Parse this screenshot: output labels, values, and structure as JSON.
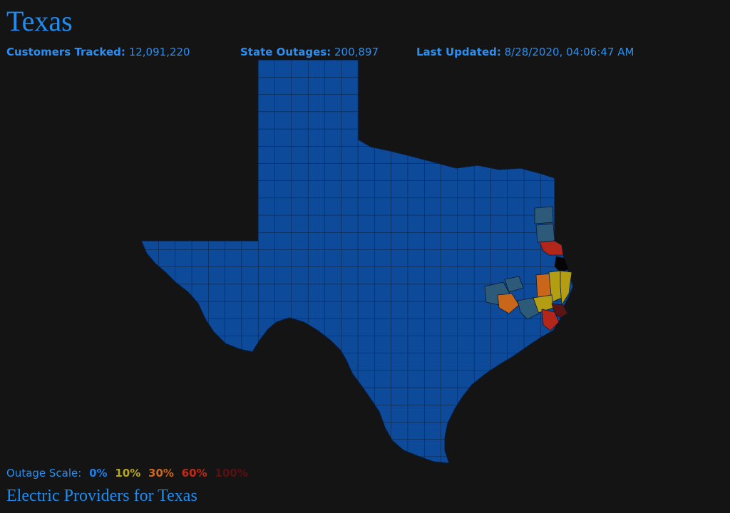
{
  "header": {
    "title": "Texas"
  },
  "stats": {
    "customers_label": "Customers Tracked:",
    "customers_value": "12,091,220",
    "outages_label": "State Outages:",
    "outages_value": "200,897",
    "updated_label": "Last Updated:",
    "updated_value": "8/28/2020, 04:06:47 AM"
  },
  "scale": {
    "label": "Outage Scale:",
    "levels": [
      {
        "text": "0%",
        "color": "#1e7fe6"
      },
      {
        "text": "10%",
        "color": "#b8a818"
      },
      {
        "text": "30%",
        "color": "#d0661a"
      },
      {
        "text": "60%",
        "color": "#c02a18"
      },
      {
        "text": "100%",
        "color": "#5a1010"
      }
    ]
  },
  "map": {
    "base_color": "#0d4a9a",
    "border_color": "#0a1a33",
    "highlighted_counties": [
      {
        "level": "some",
        "color": "#2d5a78"
      },
      {
        "level": "30%",
        "color": "#c9661a"
      },
      {
        "level": "10%",
        "color": "#b39d12"
      },
      {
        "level": "60%",
        "color": "#b3261a"
      },
      {
        "level": "100%",
        "color": "#5a1414"
      },
      {
        "level": "black",
        "color": "#050505"
      }
    ]
  },
  "footer": {
    "providers_link": "Electric Providers for Texas"
  }
}
